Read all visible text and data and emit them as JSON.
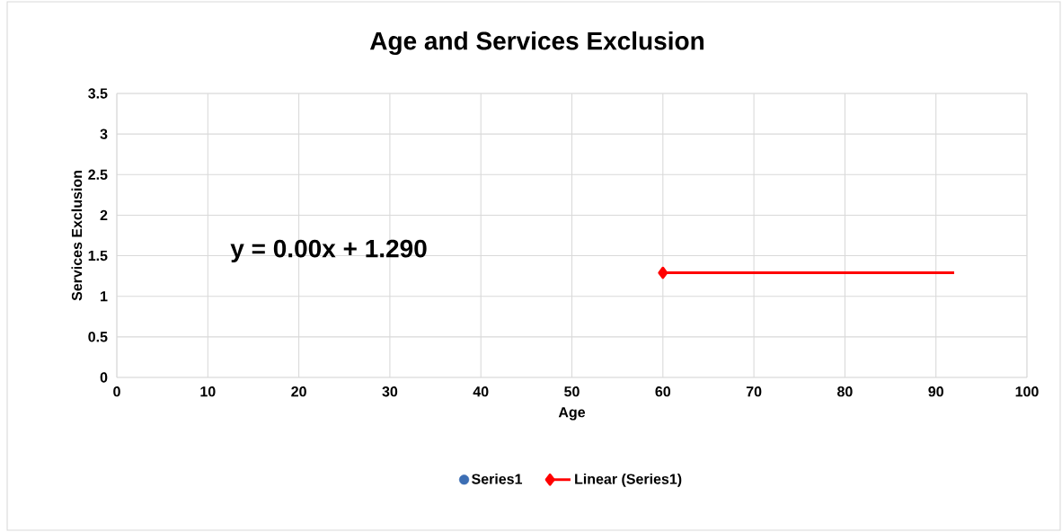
{
  "chart_data": {
    "type": "scatter",
    "title": "Age and Services Exclusion",
    "xlabel": "Age",
    "ylabel": "Services Exclusion",
    "xlim": [
      0,
      100
    ],
    "xticks": [
      0,
      10,
      20,
      30,
      40,
      50,
      60,
      70,
      80,
      90,
      100
    ],
    "ylim": [
      0,
      3.5
    ],
    "yticks": [
      0,
      0.5,
      1,
      1.5,
      2,
      2.5,
      3,
      3.5
    ],
    "grid": true,
    "legend": "bottom",
    "annotations": [
      "y = 0.00x + 1.290"
    ],
    "series": [
      {
        "name": "Series1",
        "color": "#3c6eb4",
        "marker": "circle"
      },
      {
        "name": "Linear (Series1)",
        "type": "line",
        "color": "#ff0000",
        "marker": "diamond",
        "line_style": "solid",
        "x": [
          60,
          92
        ],
        "values": [
          1.29,
          1.29
        ]
      }
    ]
  }
}
